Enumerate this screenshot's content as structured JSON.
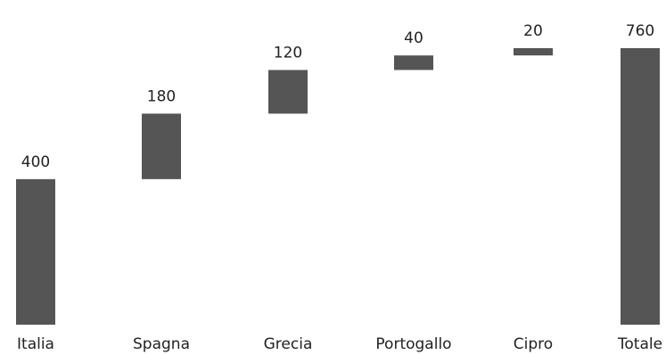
{
  "chart_data": {
    "type": "bar",
    "subtype": "waterfall",
    "title": "",
    "xlabel": "",
    "ylabel": "",
    "categories": [
      "Italia",
      "Spagna",
      "Grecia",
      "Portogallo",
      "Cipro",
      "Totale"
    ],
    "values": [
      400,
      180,
      120,
      40,
      20,
      760
    ],
    "value_labels": [
      "400",
      "180",
      "120",
      "40",
      "20",
      "760"
    ],
    "is_total": [
      false,
      false,
      false,
      false,
      false,
      true
    ],
    "ylim": [
      0,
      760
    ],
    "grid": false,
    "legend": "none",
    "colors": {
      "bar": "#555555",
      "text": "#222222"
    }
  }
}
